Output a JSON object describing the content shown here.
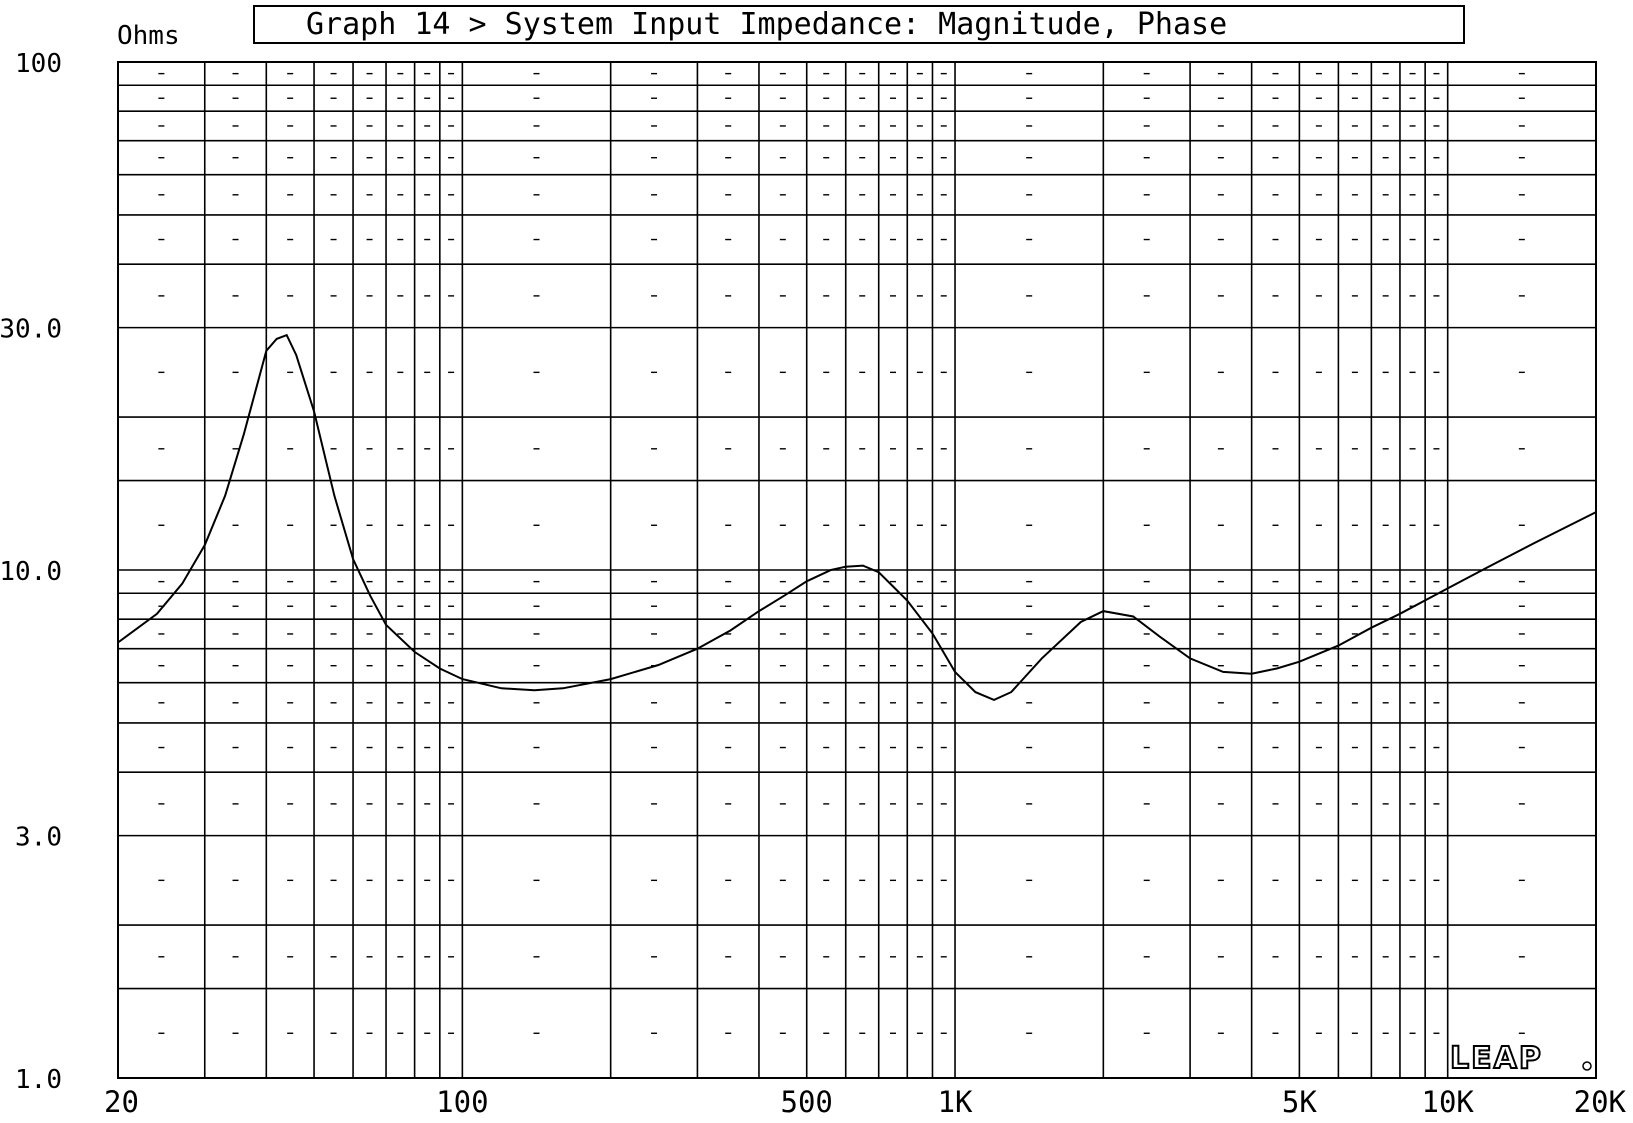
{
  "chart_data": {
    "type": "line",
    "title": "Graph 14 > System Input Impedance: Magnitude, Phase",
    "ylabel": "Ohms",
    "xlabel": "",
    "x_scale": "log",
    "y_scale": "log",
    "xlim": [
      20,
      20000
    ],
    "ylim": [
      1,
      100
    ],
    "x_tick_labels": [
      {
        "value": 20,
        "label": "20"
      },
      {
        "value": 100,
        "label": "100"
      },
      {
        "value": 500,
        "label": "500"
      },
      {
        "value": 1000,
        "label": "1K"
      },
      {
        "value": 5000,
        "label": "5K"
      },
      {
        "value": 10000,
        "label": "10K"
      },
      {
        "value": 20000,
        "label": "20K"
      }
    ],
    "y_tick_labels": [
      {
        "value": 100,
        "label": "100"
      },
      {
        "value": 30,
        "label": "30.0"
      },
      {
        "value": 10,
        "label": "10.0"
      },
      {
        "value": 3,
        "label": "3.0"
      },
      {
        "value": 1,
        "label": "1.0"
      }
    ],
    "grid": true,
    "x_grid_values": [
      30,
      40,
      50,
      60,
      70,
      80,
      90,
      100,
      200,
      300,
      400,
      500,
      600,
      700,
      800,
      900,
      1000,
      2000,
      3000,
      4000,
      5000,
      6000,
      7000,
      8000,
      9000,
      10000
    ],
    "y_grid_values": [
      1.5,
      2,
      3,
      4,
      5,
      6,
      7,
      8,
      9,
      10,
      15,
      20,
      30,
      40,
      50,
      60,
      70,
      80,
      90
    ],
    "series": [
      {
        "x": [
          20,
          24,
          27,
          30,
          33,
          36,
          40,
          42,
          44,
          46,
          50,
          55,
          60,
          65,
          70,
          80,
          90,
          100,
          120,
          140,
          160,
          200,
          250,
          300,
          350,
          400,
          450,
          500,
          560,
          600,
          650,
          700,
          800,
          900,
          1000,
          1100,
          1200,
          1300,
          1500,
          1800,
          2000,
          2300,
          2600,
          3000,
          3500,
          4000,
          4500,
          5000,
          6000,
          7000,
          8000,
          10000,
          12000,
          15000,
          20000
        ],
        "y": [
          7.2,
          8.2,
          9.4,
          11.2,
          14.0,
          18.5,
          27.0,
          28.5,
          29.0,
          26.5,
          20.5,
          14.0,
          10.5,
          8.9,
          7.8,
          6.9,
          6.4,
          6.1,
          5.85,
          5.8,
          5.85,
          6.1,
          6.5,
          7.0,
          7.6,
          8.3,
          8.9,
          9.5,
          10.0,
          10.15,
          10.2,
          9.9,
          8.7,
          7.5,
          6.3,
          5.75,
          5.55,
          5.75,
          6.7,
          7.9,
          8.3,
          8.1,
          7.4,
          6.7,
          6.3,
          6.25,
          6.4,
          6.6,
          7.1,
          7.7,
          8.2,
          9.2,
          10.1,
          11.3,
          13.0
        ]
      }
    ]
  },
  "logo": "LEAP"
}
